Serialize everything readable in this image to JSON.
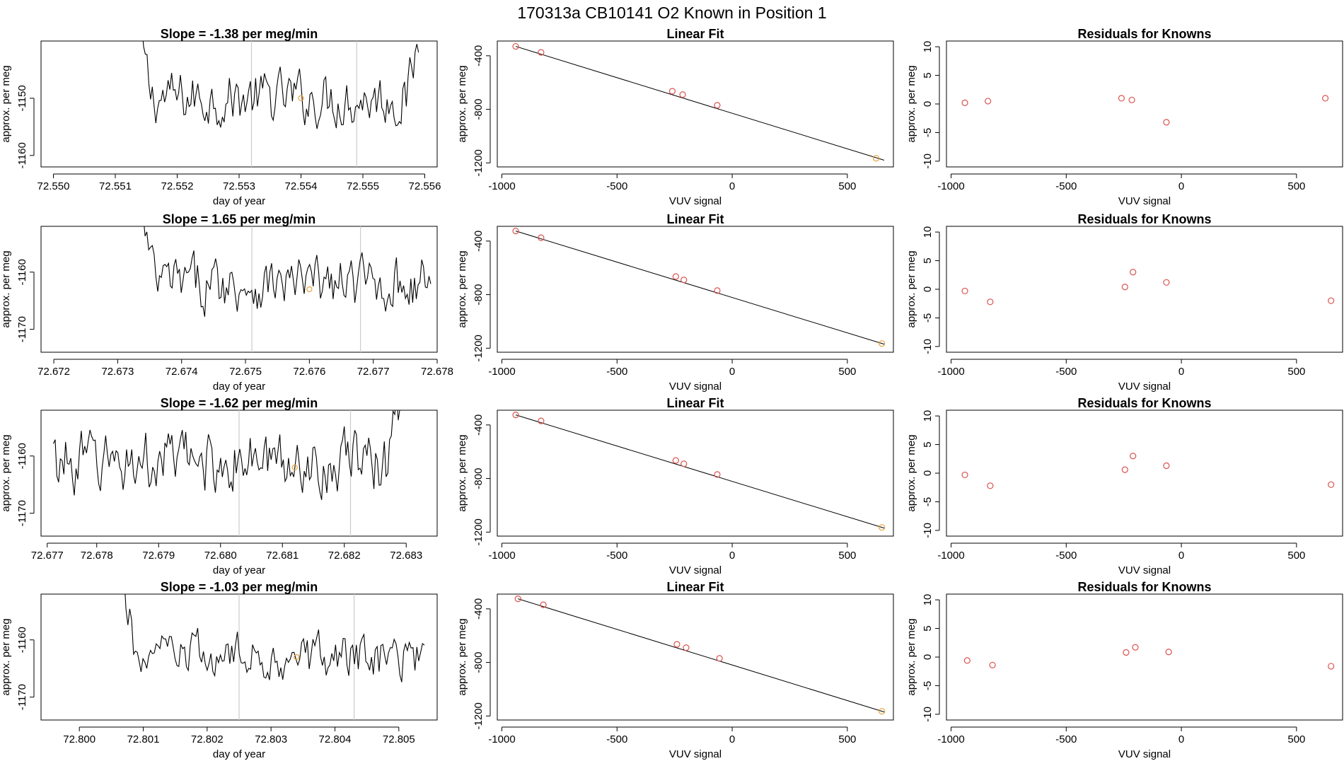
{
  "figure": {
    "title": "170313a     CB10141    O2 Known in Position  1"
  },
  "colors": {
    "trace": "#000000",
    "marker_red": "#d9534f",
    "marker_orange": "#e8a33d",
    "vline": "#cccccc",
    "frame": "#000000"
  },
  "chart_data": [
    {
      "type": "line",
      "row": 1,
      "col": 1,
      "title": "Slope =  -1.38  per meg/min",
      "xlabel": "day of year",
      "ylabel": "approx. per meg",
      "xlim": [
        72.5498,
        72.5562
      ],
      "ylim": [
        -1162,
        -1140
      ],
      "xticks": [
        72.55,
        72.551,
        72.552,
        72.553,
        72.554,
        72.555,
        72.556
      ],
      "xtick_labels": [
        "72.550",
        "72.551",
        "72.552",
        "72.553",
        "72.554",
        "72.555",
        "72.556"
      ],
      "yticks": [
        -1160,
        -1150
      ],
      "ytick_labels": [
        "-1160",
        "-1150"
      ],
      "x_start": 72.5514,
      "x_end": 72.5559,
      "n_points": 160,
      "y_mean": -1150,
      "y_amp": 4,
      "rise_start": -1140,
      "rise_end": -1140,
      "vlines": [
        72.5532,
        72.5549
      ],
      "marker": [
        72.554,
        -1150
      ]
    },
    {
      "type": "line",
      "row": 1,
      "col": 2,
      "title": "Linear Fit",
      "xlabel": "VUV signal",
      "ylabel": "approx. per meg",
      "xlim": [
        -1020,
        700
      ],
      "ylim": [
        -1230,
        -290
      ],
      "xticks": [
        -1000,
        -500,
        0,
        500
      ],
      "xtick_labels": [
        "-1000",
        "-500",
        "0",
        "500"
      ],
      "yticks": [
        -1200,
        -800,
        -400
      ],
      "ytick_labels": [
        "-1200",
        "-800",
        "-400"
      ],
      "points": [
        [
          -940,
          -330
        ],
        [
          -830,
          -375
        ],
        [
          -260,
          -665
        ],
        [
          -215,
          -690
        ],
        [
          -65,
          -770
        ],
        [
          625,
          -1165
        ]
      ],
      "fit_line": [
        [
          -940,
          -330
        ],
        [
          660,
          -1180
        ]
      ]
    },
    {
      "type": "scatter",
      "row": 1,
      "col": 3,
      "title": "Residuals for Knowns",
      "xlabel": "VUV signal",
      "ylabel": "approx. per meg",
      "xlim": [
        -1020,
        700
      ],
      "ylim": [
        -11,
        11
      ],
      "xticks": [
        -1000,
        -500,
        0,
        500
      ],
      "xtick_labels": [
        "-1000",
        "-500",
        "0",
        "500"
      ],
      "yticks": [
        -10,
        -5,
        0,
        5,
        10
      ],
      "ytick_labels": [
        "-10",
        "-5",
        "0",
        "5",
        "10"
      ],
      "points": [
        [
          -940,
          0.2
        ],
        [
          -840,
          0.5
        ],
        [
          -260,
          1.0
        ],
        [
          -215,
          0.7
        ],
        [
          -65,
          -3.2
        ],
        [
          625,
          1.0
        ]
      ]
    },
    {
      "type": "line",
      "row": 2,
      "col": 1,
      "title": "Slope =  1.65  per meg/min",
      "xlabel": "day of year",
      "ylabel": "approx. per meg",
      "xlim": [
        72.6718,
        72.678
      ],
      "ylim": [
        -1174,
        -1152
      ],
      "xticks": [
        72.672,
        72.673,
        72.674,
        72.675,
        72.676,
        72.677,
        72.678
      ],
      "xtick_labels": [
        "72.672",
        "72.673",
        "72.674",
        "72.675",
        "72.676",
        "72.677",
        "72.678"
      ],
      "yticks": [
        -1170,
        -1160
      ],
      "ytick_labels": [
        "-1170",
        "-1160"
      ],
      "x_start": 72.6734,
      "x_end": 72.6779,
      "n_points": 160,
      "y_mean": -1162,
      "y_amp": 4,
      "rise_start": -1152,
      "rise_end": -1161,
      "vlines": [
        72.6751,
        72.6768
      ],
      "marker": [
        72.676,
        -1163
      ]
    },
    {
      "type": "line",
      "row": 2,
      "col": 2,
      "title": "Linear Fit",
      "xlabel": "VUV signal",
      "ylabel": "approx. per meg",
      "xlim": [
        -1020,
        700
      ],
      "ylim": [
        -1230,
        -290
      ],
      "xticks": [
        -1000,
        -500,
        0,
        500
      ],
      "xtick_labels": [
        "-1000",
        "-500",
        "0",
        "500"
      ],
      "yticks": [
        -1200,
        -800,
        -400
      ],
      "ytick_labels": [
        "-1200",
        "-800",
        "-400"
      ],
      "points": [
        [
          -940,
          -325
        ],
        [
          -830,
          -375
        ],
        [
          -245,
          -665
        ],
        [
          -210,
          -690
        ],
        [
          -65,
          -770
        ],
        [
          650,
          -1165
        ]
      ],
      "fit_line": [
        [
          -940,
          -325
        ],
        [
          660,
          -1170
        ]
      ]
    },
    {
      "type": "scatter",
      "row": 2,
      "col": 3,
      "title": "Residuals for Knowns",
      "xlabel": "VUV signal",
      "ylabel": "approx. per meg",
      "xlim": [
        -1020,
        700
      ],
      "ylim": [
        -11,
        11
      ],
      "xticks": [
        -1000,
        -500,
        0,
        500
      ],
      "xtick_labels": [
        "-1000",
        "-500",
        "0",
        "500"
      ],
      "yticks": [
        -10,
        -5,
        0,
        5,
        10
      ],
      "ytick_labels": [
        "-10",
        "-5",
        "0",
        "5",
        "10"
      ],
      "points": [
        [
          -940,
          -0.3
        ],
        [
          -830,
          -2.2
        ],
        [
          -245,
          0.4
        ],
        [
          -210,
          3.0
        ],
        [
          -65,
          1.2
        ],
        [
          650,
          -2.0
        ]
      ]
    },
    {
      "type": "line",
      "row": 3,
      "col": 1,
      "title": "Slope =  -1.62  per meg/min",
      "xlabel": "day of year",
      "ylabel": "approx. per meg",
      "xlim": [
        72.6771,
        72.6835
      ],
      "ylim": [
        -1174,
        -1152
      ],
      "xticks": [
        72.678,
        72.679,
        72.68,
        72.681,
        72.682,
        72.683
      ],
      "xtick_labels": [
        "72.678",
        "72.679",
        "72.680",
        "72.681",
        "72.682",
        "72.683"
      ],
      "extra_xtick": [
        72.6772,
        "72.677"
      ],
      "yticks": [
        -1170,
        -1160
      ],
      "ytick_labels": [
        "-1170",
        "-1160"
      ],
      "x_start": 72.6773,
      "x_end": 72.6829,
      "n_points": 200,
      "y_mean": -1161,
      "y_amp": 4.5,
      "rise_start": -1161,
      "rise_end": -1152,
      "vlines": [
        72.6803,
        72.6821
      ],
      "marker": [
        72.6812,
        -1162
      ]
    },
    {
      "type": "line",
      "row": 3,
      "col": 2,
      "title": "Linear Fit",
      "xlabel": "VUV signal",
      "ylabel": "approx. per meg",
      "xlim": [
        -1020,
        700
      ],
      "ylim": [
        -1230,
        -290
      ],
      "xticks": [
        -1000,
        -500,
        0,
        500
      ],
      "xtick_labels": [
        "-1000",
        "-500",
        "0",
        "500"
      ],
      "yticks": [
        -1200,
        -800,
        -400
      ],
      "ytick_labels": [
        "-1200",
        "-800",
        "-400"
      ],
      "points": [
        [
          -940,
          -325
        ],
        [
          -830,
          -370
        ],
        [
          -245,
          -665
        ],
        [
          -210,
          -690
        ],
        [
          -65,
          -770
        ],
        [
          650,
          -1165
        ]
      ],
      "fit_line": [
        [
          -940,
          -325
        ],
        [
          660,
          -1170
        ]
      ]
    },
    {
      "type": "scatter",
      "row": 3,
      "col": 3,
      "title": "Residuals for Knowns",
      "xlabel": "VUV signal",
      "ylabel": "approx. per meg",
      "xlim": [
        -1020,
        700
      ],
      "ylim": [
        -11,
        11
      ],
      "xticks": [
        -1000,
        -500,
        0,
        500
      ],
      "xtick_labels": [
        "-1000",
        "-500",
        "0",
        "500"
      ],
      "yticks": [
        -10,
        -5,
        0,
        5,
        10
      ],
      "ytick_labels": [
        "-10",
        "-5",
        "0",
        "5",
        "10"
      ],
      "points": [
        [
          -940,
          -0.3
        ],
        [
          -830,
          -2.2
        ],
        [
          -245,
          0.6
        ],
        [
          -210,
          3.0
        ],
        [
          -65,
          1.3
        ],
        [
          650,
          -2.0
        ]
      ]
    },
    {
      "type": "line",
      "row": 4,
      "col": 1,
      "title": "Slope =  -1.03  per meg/min",
      "xlabel": "day of year",
      "ylabel": "approx. per meg",
      "xlim": [
        72.7994,
        72.8056
      ],
      "ylim": [
        -1174,
        -1152
      ],
      "xticks": [
        72.8,
        72.801,
        72.802,
        72.803,
        72.804,
        72.805
      ],
      "xtick_labels": [
        "72.800",
        "72.801",
        "72.802",
        "72.803",
        "72.804",
        "72.805"
      ],
      "yticks": [
        -1170,
        -1160
      ],
      "ytick_labels": [
        "-1170",
        "-1160"
      ],
      "x_start": 72.8007,
      "x_end": 72.8054,
      "n_points": 160,
      "y_mean": -1163,
      "y_amp": 3.5,
      "rise_start": -1152,
      "rise_end": -1163,
      "vlines": [
        72.8025,
        72.8043
      ],
      "marker": [
        72.8034,
        -1163
      ]
    },
    {
      "type": "line",
      "row": 4,
      "col": 2,
      "title": "Linear Fit",
      "xlabel": "VUV signal",
      "ylabel": "approx. per meg",
      "xlim": [
        -1020,
        700
      ],
      "ylim": [
        -1230,
        -290
      ],
      "xticks": [
        -1000,
        -500,
        0,
        500
      ],
      "xtick_labels": [
        "-1000",
        "-500",
        "0",
        "500"
      ],
      "yticks": [
        -1200,
        -800,
        -400
      ],
      "ytick_labels": [
        "-1200",
        "-800",
        "-400"
      ],
      "points": [
        [
          -930,
          -325
        ],
        [
          -820,
          -370
        ],
        [
          -240,
          -665
        ],
        [
          -200,
          -690
        ],
        [
          -55,
          -770
        ],
        [
          650,
          -1165
        ]
      ],
      "fit_line": [
        [
          -930,
          -325
        ],
        [
          660,
          -1170
        ]
      ]
    },
    {
      "type": "scatter",
      "row": 4,
      "col": 3,
      "title": "Residuals for Knowns",
      "xlabel": "VUV signal",
      "ylabel": "approx. per meg",
      "xlim": [
        -1020,
        700
      ],
      "ylim": [
        -11,
        11
      ],
      "xticks": [
        -1000,
        -500,
        0,
        500
      ],
      "xtick_labels": [
        "-1000",
        "-500",
        "0",
        "500"
      ],
      "yticks": [
        -10,
        -5,
        0,
        5,
        10
      ],
      "ytick_labels": [
        "-10",
        "-5",
        "0",
        "5",
        "10"
      ],
      "points": [
        [
          -930,
          -0.6
        ],
        [
          -820,
          -1.4
        ],
        [
          -240,
          0.8
        ],
        [
          -200,
          1.7
        ],
        [
          -55,
          0.9
        ],
        [
          650,
          -1.6
        ]
      ]
    }
  ]
}
